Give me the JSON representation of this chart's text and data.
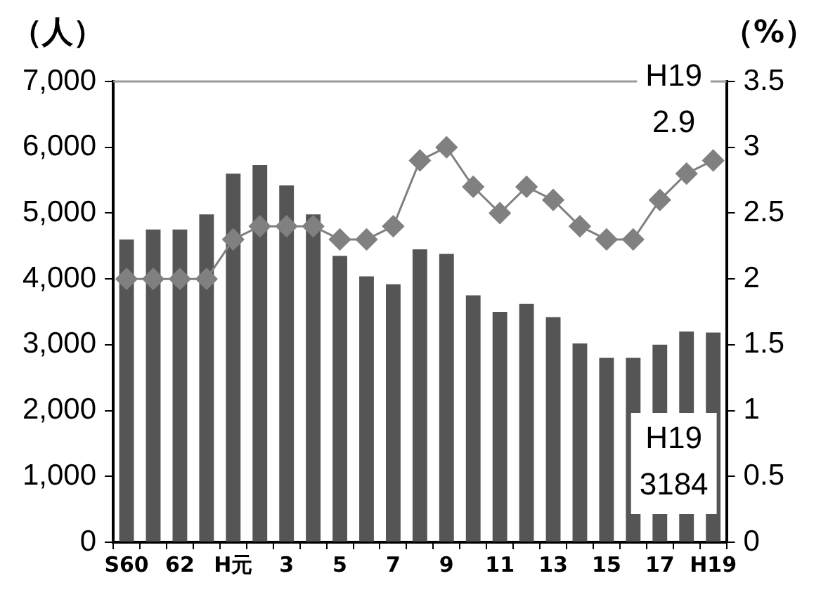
{
  "chart_data": {
    "type": "bar",
    "ylabel": "（人）",
    "y2label": "（%）",
    "categories": [
      "S60",
      null,
      "62",
      null,
      "H元",
      null,
      "3",
      null,
      "5",
      null,
      "7",
      null,
      "9",
      null,
      "11",
      null,
      "13",
      null,
      "15",
      null,
      "17",
      null,
      "H19"
    ],
    "series": [
      {
        "color": "#555555",
        "values": [
          4600,
          4750,
          4750,
          4980,
          5600,
          5730,
          5420,
          4980,
          4350,
          4040,
          3920,
          4450,
          4380,
          3750,
          3500,
          3620,
          3420,
          3020,
          2800,
          2800,
          3000,
          3200,
          3184
        ]
      },
      {
        "type": "line",
        "axis": "y2",
        "color": "#808080",
        "marker": "diamond",
        "values": [
          2,
          2,
          2,
          2,
          2.3,
          2.4,
          2.4,
          2.4,
          2.3,
          2.3,
          2.4,
          2.9,
          3.0,
          2.7,
          2.5,
          2.7,
          2.6,
          2.4,
          2.3,
          2.3,
          2.6,
          2.8,
          2.9
        ]
      }
    ],
    "ylim": [
      0,
      7000
    ],
    "yticks": [
      {
        "value": 0,
        "label": "0"
      },
      {
        "value": 1000,
        "label": "1,000"
      },
      {
        "value": 2000,
        "label": "2,000"
      },
      {
        "value": 3000,
        "label": "3,000"
      },
      {
        "value": 4000,
        "label": "4,000"
      },
      {
        "value": 5000,
        "label": "5,000"
      },
      {
        "value": 6000,
        "label": "6,000"
      },
      {
        "value": 7000,
        "label": "7,000"
      }
    ],
    "y2lim": [
      0,
      3.5
    ],
    "y2ticks": [
      0,
      0.5,
      1,
      1.5,
      2,
      2.5,
      3,
      3.5
    ],
    "annotations": [
      "H19\n2.9",
      "H19\n3184"
    ],
    "grid": false,
    "legend": false
  }
}
